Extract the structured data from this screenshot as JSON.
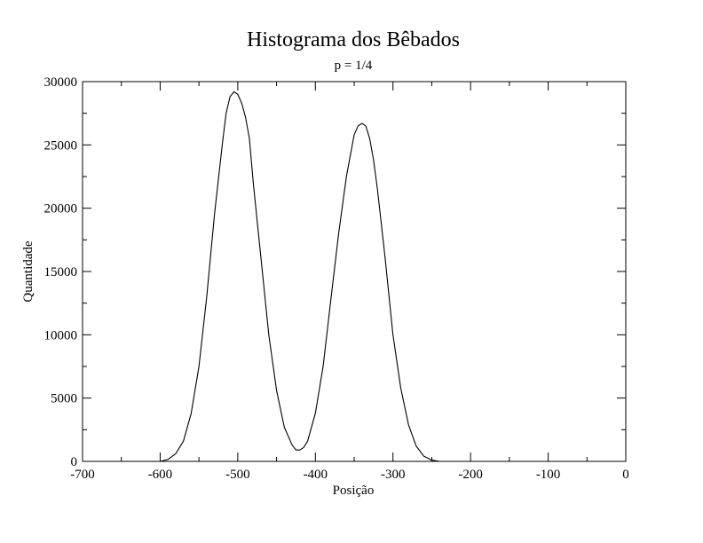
{
  "chart_data": {
    "type": "line",
    "title": "Histograma dos Bêbados",
    "subtitle": "p = 1/4",
    "xlabel": "Posição",
    "ylabel": "Quantidade",
    "xlim": [
      -700,
      0
    ],
    "ylim": [
      0,
      30000
    ],
    "x_ticks": [
      "-700",
      "-600",
      "-500",
      "-400",
      "-300",
      "-200",
      "-100",
      "0"
    ],
    "y_ticks": [
      "0",
      "5000",
      "10000",
      "15000",
      "20000",
      "25000",
      "30000"
    ],
    "grid": false,
    "line_color": "#000000",
    "series": [
      {
        "x": [
          -620,
          -600,
          -590,
          -580,
          -570,
          -560,
          -550,
          -540,
          -530,
          -520,
          -515,
          -510,
          -505,
          -500,
          -495,
          -490,
          -485,
          -480,
          -470,
          -460,
          -450,
          -440,
          -430,
          -425,
          -420,
          -415,
          -410,
          -400,
          -390,
          -380,
          -370,
          -360,
          -350,
          -345,
          -340,
          -335,
          -330,
          -325,
          -320,
          -310,
          -300,
          -290,
          -280,
          -270,
          -260,
          -250,
          -240,
          -230,
          -220,
          -200,
          -100,
          0
        ],
        "y": [
          0,
          0,
          150,
          600,
          1600,
          3800,
          7500,
          13000,
          19500,
          25000,
          27500,
          28800,
          29200,
          29000,
          28300,
          27200,
          25500,
          22000,
          16000,
          10000,
          5600,
          2700,
          1300,
          900,
          900,
          1100,
          1600,
          3800,
          7500,
          12800,
          18000,
          22500,
          25800,
          26500,
          26700,
          26500,
          25500,
          23800,
          21500,
          16000,
          10000,
          5800,
          2900,
          1200,
          400,
          100,
          0,
          0,
          0,
          0,
          0,
          0
        ]
      }
    ]
  }
}
